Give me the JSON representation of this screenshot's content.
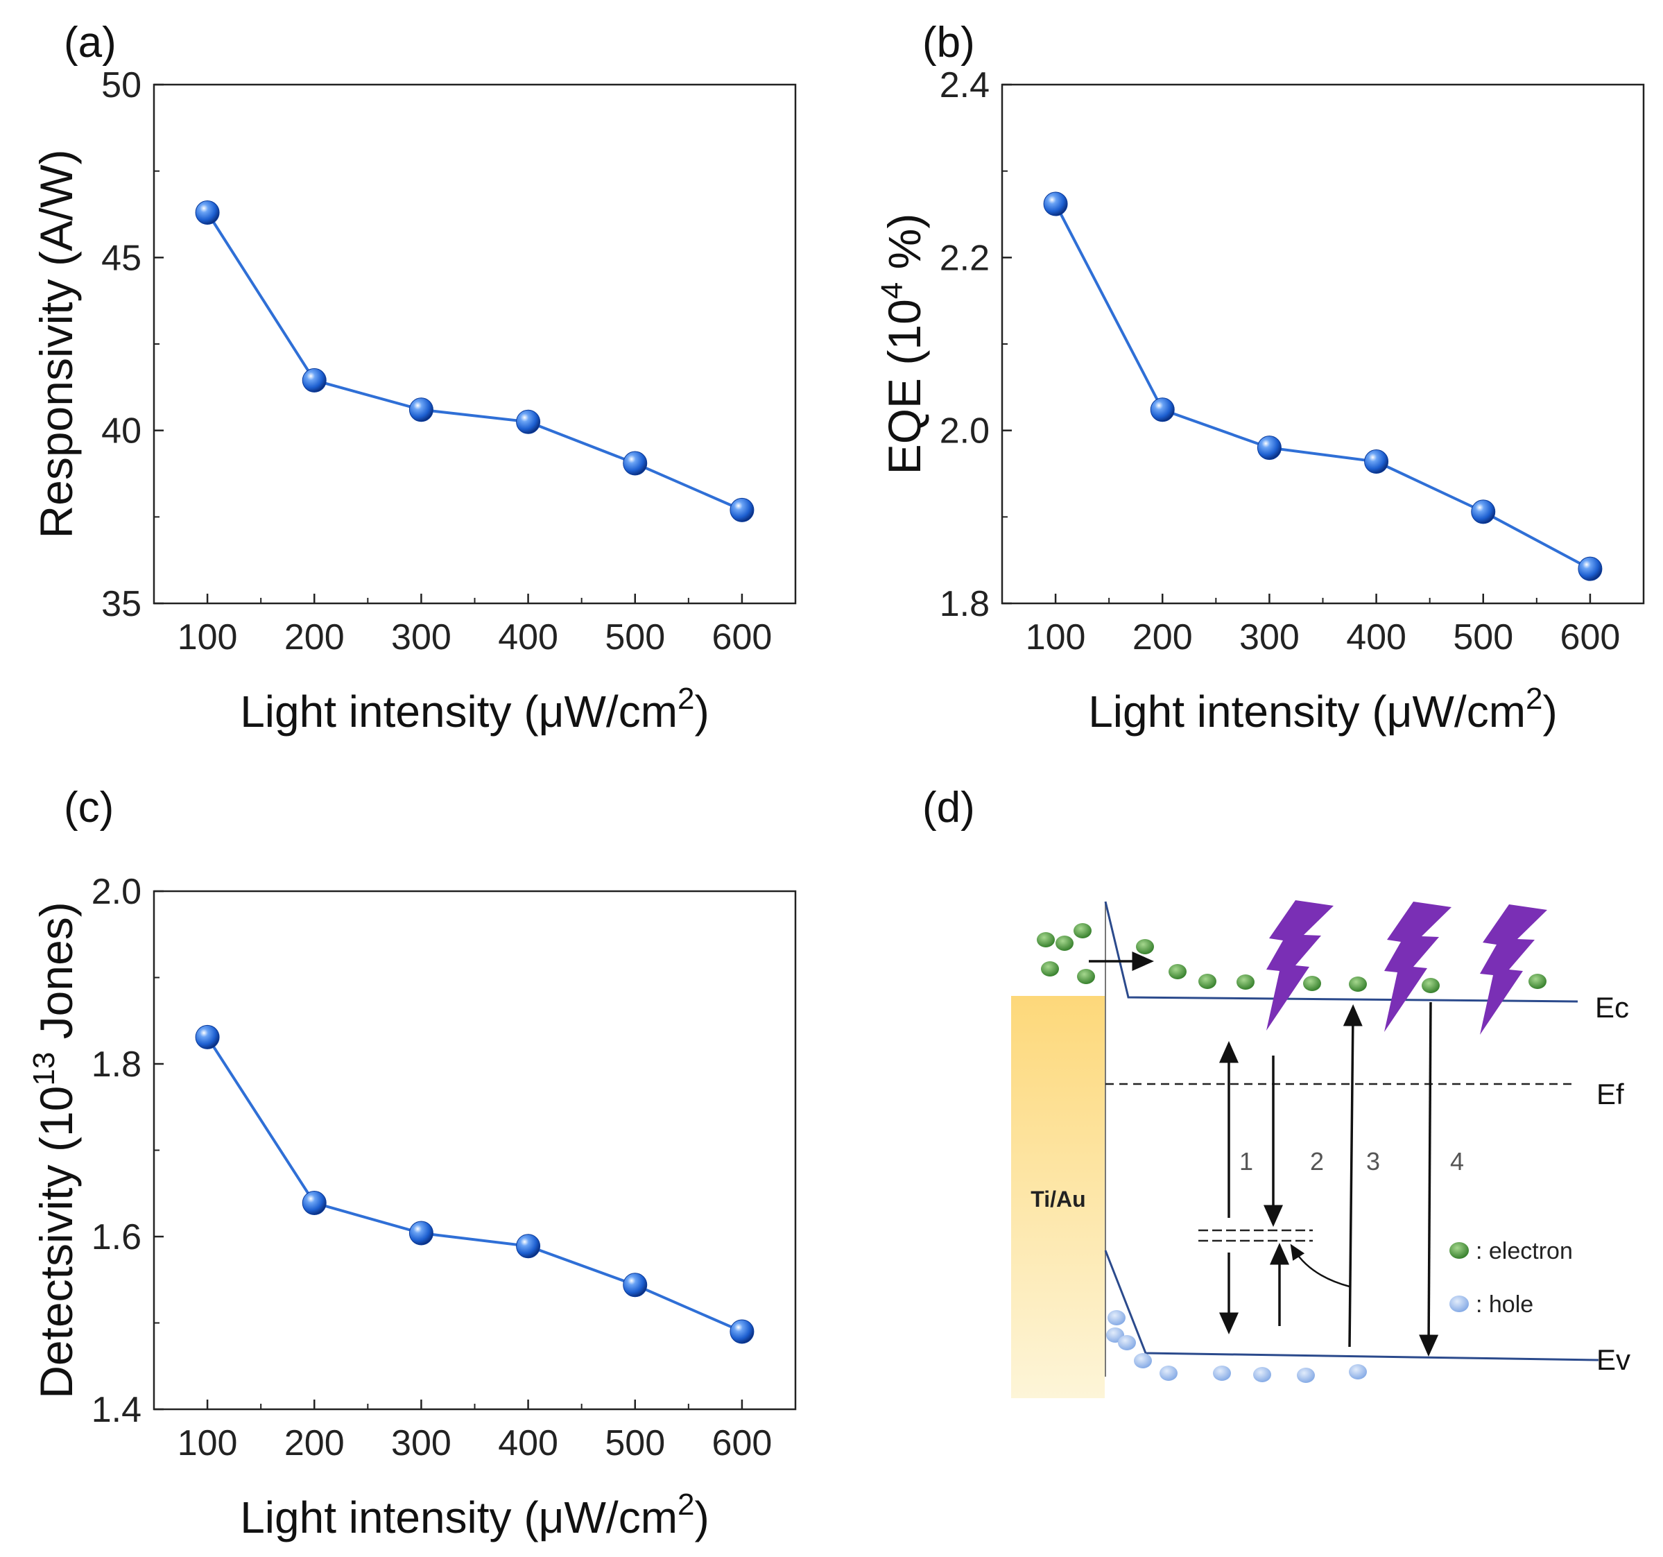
{
  "chart_data": [
    {
      "panel": "(a)",
      "type": "line",
      "title": "",
      "xlabel": "Light intensity (μW/cm",
      "xlabel_sup": "2",
      "xlabel_end": ")",
      "ylabel": "Responsivity (A/W)",
      "ylabel_sup": "",
      "ylabel_end": "",
      "x": [
        100,
        200,
        300,
        400,
        500,
        600
      ],
      "y": [
        46.3,
        41.45,
        40.6,
        40.25,
        39.05,
        37.7
      ],
      "xlim": [
        50,
        650
      ],
      "ylim": [
        35,
        50
      ],
      "xticks": [
        100,
        200,
        300,
        400,
        500,
        600
      ],
      "yticks": [
        35,
        40,
        45,
        50
      ],
      "ytick_labels": [
        "35",
        "40",
        "45",
        "50"
      ],
      "color": "#2f6fd6"
    },
    {
      "panel": "(b)",
      "type": "line",
      "title": "",
      "xlabel": "Light intensity (μW/cm",
      "xlabel_sup": "2",
      "xlabel_end": ")",
      "ylabel": "EQE (10",
      "ylabel_sup": "4",
      "ylabel_end": " %)",
      "x": [
        100,
        200,
        300,
        400,
        500,
        600
      ],
      "y": [
        2.262,
        2.024,
        1.98,
        1.964,
        1.906,
        1.84
      ],
      "xlim": [
        50,
        650
      ],
      "ylim": [
        1.8,
        2.4
      ],
      "xticks": [
        100,
        200,
        300,
        400,
        500,
        600
      ],
      "yticks": [
        1.8,
        2.0,
        2.2,
        2.4
      ],
      "ytick_labels": [
        "1.8",
        "2.0",
        "2.2",
        "2.4"
      ],
      "color": "#2f6fd6"
    },
    {
      "panel": "(c)",
      "type": "line",
      "title": "",
      "xlabel": "Light intensity (μW/cm",
      "xlabel_sup": "2",
      "xlabel_end": ")",
      "ylabel": "Detectsivity (10",
      "ylabel_sup": "13",
      "ylabel_end": " Jones)",
      "x": [
        100,
        200,
        300,
        400,
        500,
        600
      ],
      "y": [
        1.831,
        1.639,
        1.604,
        1.589,
        1.544,
        1.49
      ],
      "xlim": [
        50,
        650
      ],
      "ylim": [
        1.4,
        2.0
      ],
      "xticks": [
        100,
        200,
        300,
        400,
        500,
        600
      ],
      "yticks": [
        1.4,
        1.6,
        1.8,
        2.0
      ],
      "ytick_labels": [
        "1.4",
        "1.6",
        "1.8",
        "2.0"
      ],
      "color": "#2f6fd6"
    }
  ],
  "diagram": {
    "panel": "(d)",
    "contact_label": "Ti/Au",
    "ec_label": "Ec",
    "ef_label": "Ef",
    "ev_label": "Ev",
    "process_labels": [
      "1",
      "2",
      "3",
      "4"
    ],
    "legend_electron": ": electron",
    "legend_hole": ": hole",
    "electron_color": "#3d8a2f",
    "hole_color": "#8fb0e8",
    "lightning_color": "#7a2fb5",
    "band_color": "#2b4a8c",
    "contact_color": "#fbe3a0"
  }
}
